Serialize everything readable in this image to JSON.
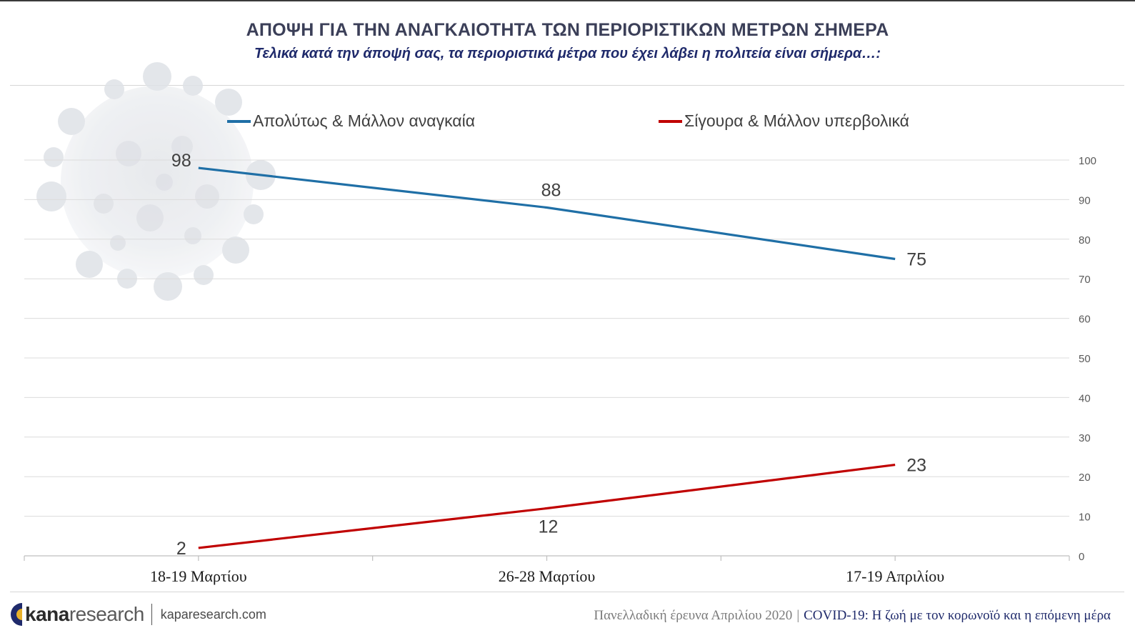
{
  "header": {
    "title": "ΑΠΟΨΗ ΓΙΑ ΤΗΝ ΑΝΑΓΚΑΙΟΤΗΤΑ ΤΩΝ ΠΕΡΙΟΡΙΣΤΙΚΩΝ ΜΕΤΡΩΝ ΣΗΜΕΡΑ",
    "subtitle": "Τελικά κατά την άποψή σας, τα περιοριστικά μέτρα που έχει λάβει η πολιτεία είναι σήμερα…:"
  },
  "legend": [
    {
      "label": "Απολύτως & Μάλλον αναγκαία",
      "color": "#1f6fa6"
    },
    {
      "label": "Σίγουρα & Μάλλον υπερβολικά",
      "color": "#c00000"
    }
  ],
  "chart_data": {
    "type": "line",
    "title": "ΑΠΟΨΗ ΓΙΑ ΤΗΝ ΑΝΑΓΚΑΙΟΤΗΤΑ ΤΩΝ ΠΕΡΙΟΡΙΣΤΙΚΩΝ ΜΕΤΡΩΝ ΣΗΜΕΡΑ",
    "categories": [
      "18-19 Μαρτίου",
      "26-28 Μαρτίου",
      "17-19 Απριλίου"
    ],
    "series": [
      {
        "name": "Απολύτως & Μάλλον αναγκαία",
        "values": [
          98,
          88,
          75
        ],
        "color": "#1f6fa6"
      },
      {
        "name": "Σίγουρα & Μάλλον υπερβολικά",
        "values": [
          2,
          12,
          23
        ],
        "color": "#c00000"
      }
    ],
    "ylim": [
      0,
      100
    ],
    "yticks": [
      0,
      10,
      20,
      30,
      40,
      50,
      60,
      70,
      80,
      90,
      100
    ],
    "y_axis_side": "right",
    "grid": true,
    "xlabel": "",
    "ylabel": "",
    "legend_position": "top"
  },
  "footer": {
    "brand_bold": "kana",
    "brand_light": "research",
    "url": "kaparesearch.com",
    "survey": "Πανελλαδική έρευνα Απριλίου 2020",
    "separator": "|",
    "topic": "COVID-19: Η ζωή με τον κορωνοϊό και η επόμενη μέρα",
    "logo_colors": [
      "#1f2a6b",
      "#e8b12a"
    ]
  }
}
